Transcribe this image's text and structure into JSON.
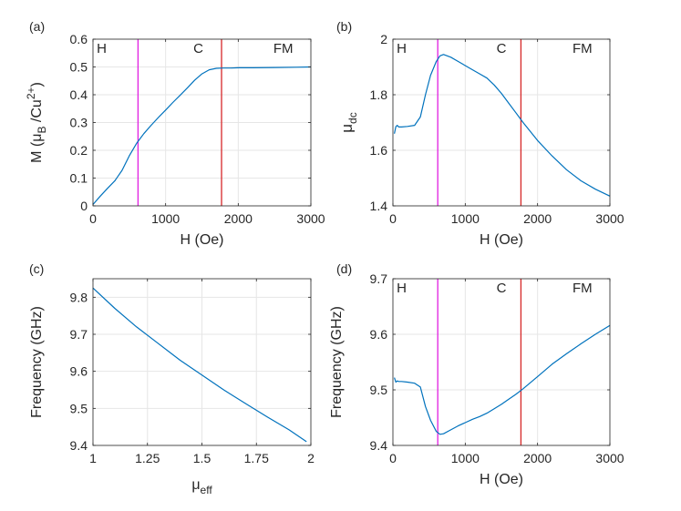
{
  "figure": {
    "panels": [
      {
        "id": "a",
        "label": "(a)"
      },
      {
        "id": "b",
        "label": "(b)"
      },
      {
        "id": "c",
        "label": "(c)"
      },
      {
        "id": "d",
        "label": "(d)"
      }
    ],
    "colors": {
      "line": "#0072BD",
      "magenta": "#E11EE1",
      "red": "#D62728",
      "grid": "#e6e6e6",
      "axis": "#262626"
    }
  },
  "chart_data": [
    {
      "id": "a",
      "type": "line",
      "xlabel": "H (Oe)",
      "ylabel": "M (μB /Cu2+)",
      "xlim": [
        0,
        3000
      ],
      "ylim": [
        0,
        0.6
      ],
      "xticks": [
        0,
        1000,
        2000,
        3000
      ],
      "xtick_labels": [
        "0",
        "1000",
        "2000",
        "3000"
      ],
      "yticks": [
        0,
        0.1,
        0.2,
        0.3,
        0.4,
        0.5,
        0.6
      ],
      "ytick_labels": [
        "0",
        "0.1",
        "0.2",
        "0.3",
        "0.4",
        "0.5",
        "0.6"
      ],
      "grid": true,
      "vlines": [
        {
          "x": 620,
          "color": "magenta"
        },
        {
          "x": 1770,
          "color": "red"
        }
      ],
      "regions": [
        {
          "text": "H",
          "x": 120
        },
        {
          "text": "C",
          "x": 1450
        },
        {
          "text": "FM",
          "x": 2620
        }
      ],
      "series": [
        {
          "name": "M",
          "x": [
            0,
            100,
            200,
            300,
            400,
            500,
            600,
            700,
            800,
            900,
            1000,
            1100,
            1200,
            1300,
            1400,
            1500,
            1600,
            1700,
            1800,
            1900,
            2000,
            2200,
            2500,
            2800,
            3000
          ],
          "y": [
            0.005,
            0.035,
            0.063,
            0.09,
            0.128,
            0.18,
            0.225,
            0.26,
            0.29,
            0.318,
            0.345,
            0.372,
            0.398,
            0.425,
            0.452,
            0.475,
            0.49,
            0.495,
            0.496,
            0.496,
            0.497,
            0.497,
            0.498,
            0.499,
            0.5
          ]
        }
      ]
    },
    {
      "id": "b",
      "type": "line",
      "xlabel": "H (Oe)",
      "ylabel": "μdc",
      "xlim": [
        0,
        3000
      ],
      "ylim": [
        1.4,
        2.0
      ],
      "xticks": [
        0,
        1000,
        2000,
        3000
      ],
      "xtick_labels": [
        "0",
        "1000",
        "2000",
        "3000"
      ],
      "yticks": [
        1.4,
        1.6,
        1.8,
        2.0
      ],
      "ytick_labels": [
        "1.4",
        "1.6",
        "1.8",
        "2"
      ],
      "grid": true,
      "vlines": [
        {
          "x": 620,
          "color": "magenta"
        },
        {
          "x": 1770,
          "color": "red"
        }
      ],
      "regions": [
        {
          "text": "H",
          "x": 120
        },
        {
          "text": "C",
          "x": 1500
        },
        {
          "text": "FM",
          "x": 2620
        }
      ],
      "series": [
        {
          "name": "mu_dc",
          "x": [
            20,
            40,
            60,
            80,
            120,
            200,
            300,
            380,
            450,
            520,
            600,
            650,
            700,
            750,
            800,
            900,
            1000,
            1100,
            1200,
            1300,
            1400,
            1500,
            1600,
            1700,
            1800,
            2000,
            2200,
            2400,
            2600,
            2800,
            3000
          ],
          "y": [
            1.66,
            1.685,
            1.69,
            1.684,
            1.684,
            1.686,
            1.69,
            1.72,
            1.8,
            1.87,
            1.92,
            1.94,
            1.945,
            1.94,
            1.935,
            1.92,
            1.905,
            1.89,
            1.875,
            1.86,
            1.835,
            1.805,
            1.77,
            1.735,
            1.7,
            1.635,
            1.58,
            1.53,
            1.49,
            1.46,
            1.435
          ]
        }
      ]
    },
    {
      "id": "c",
      "type": "line",
      "xlabel": "μeff",
      "ylabel": "Frequency (GHz)",
      "xlim": [
        1,
        2
      ],
      "ylim": [
        9.4,
        9.85
      ],
      "xticks": [
        1,
        1.25,
        1.5,
        1.75,
        2
      ],
      "xtick_labels": [
        "1",
        "1.25",
        "1.5",
        "1.75",
        "2"
      ],
      "yticks": [
        9.4,
        9.5,
        9.6,
        9.7,
        9.8
      ],
      "ytick_labels": [
        "9.4",
        "9.5",
        "9.6",
        "9.7",
        "9.8"
      ],
      "grid": true,
      "vlines": [],
      "regions": [],
      "series": [
        {
          "name": "f",
          "x": [
            1,
            1.1,
            1.2,
            1.3,
            1.4,
            1.5,
            1.6,
            1.7,
            1.8,
            1.9,
            1.98
          ],
          "y": [
            9.825,
            9.77,
            9.72,
            9.675,
            9.63,
            9.59,
            9.55,
            9.513,
            9.477,
            9.442,
            9.41
          ]
        }
      ]
    },
    {
      "id": "d",
      "type": "line",
      "xlabel": "H (Oe)",
      "ylabel": "Frequency (GHz)",
      "xlim": [
        0,
        3000
      ],
      "ylim": [
        9.4,
        9.7
      ],
      "xticks": [
        0,
        1000,
        2000,
        3000
      ],
      "xtick_labels": [
        "0",
        "1000",
        "2000",
        "3000"
      ],
      "yticks": [
        9.4,
        9.5,
        9.6,
        9.7
      ],
      "ytick_labels": [
        "9.4",
        "9.5",
        "9.6",
        "9.7"
      ],
      "grid": true,
      "vlines": [
        {
          "x": 620,
          "color": "magenta"
        },
        {
          "x": 1770,
          "color": "red"
        }
      ],
      "regions": [
        {
          "text": "H",
          "x": 120
        },
        {
          "text": "C",
          "x": 1500
        },
        {
          "text": "FM",
          "x": 2620
        }
      ],
      "series": [
        {
          "name": "f",
          "x": [
            20,
            40,
            60,
            80,
            120,
            200,
            300,
            380,
            450,
            520,
            600,
            650,
            700,
            800,
            900,
            1000,
            1100,
            1200,
            1300,
            1400,
            1500,
            1600,
            1700,
            1800,
            2000,
            2200,
            2400,
            2600,
            2800,
            3000
          ],
          "y": [
            9.522,
            9.514,
            9.516,
            9.515,
            9.515,
            9.514,
            9.512,
            9.505,
            9.47,
            9.445,
            9.425,
            9.42,
            9.421,
            9.428,
            9.435,
            9.441,
            9.447,
            9.452,
            9.458,
            9.466,
            9.474,
            9.483,
            9.492,
            9.502,
            9.524,
            9.546,
            9.565,
            9.583,
            9.6,
            9.616
          ]
        }
      ]
    }
  ]
}
